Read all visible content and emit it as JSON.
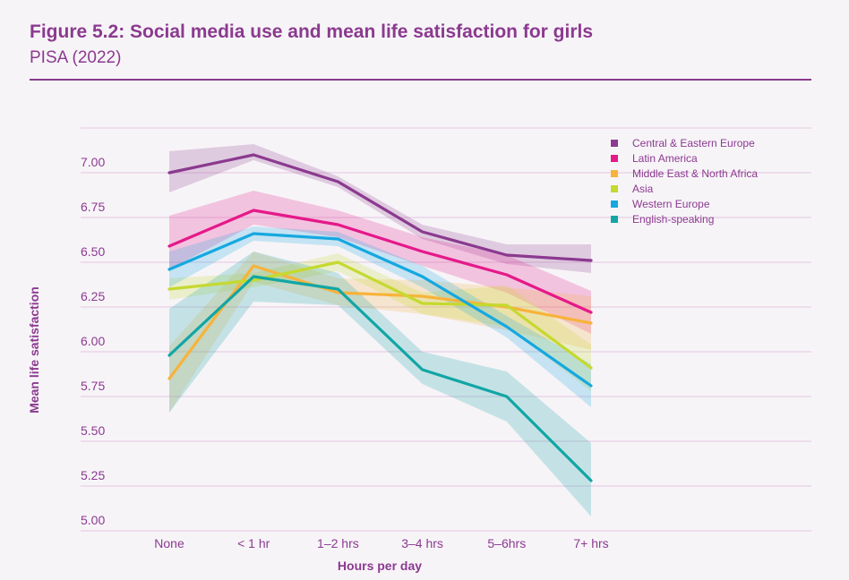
{
  "header": {
    "title": "Figure 5.2: Social media use and mean life satisfaction for girls",
    "subtitle": "PISA (2022)"
  },
  "chart_data": {
    "type": "line",
    "title": "Figure 5.2: Social media use and mean life satisfaction for girls",
    "subtitle": "PISA (2022)",
    "xlabel": "Hours per day",
    "ylabel": "Mean life satisfaction",
    "categories": [
      "None",
      "< 1 hr",
      "1–2 hrs",
      "3–4 hrs",
      "5–6hrs",
      "7+ hrs"
    ],
    "ylim": [
      5.0,
      7.25
    ],
    "yticks": [
      "5.00",
      "5.25",
      "5.50",
      "5.75",
      "6.00",
      "6.25",
      "6.50",
      "6.75",
      "7.00"
    ],
    "ytick_values": [
      5.0,
      5.25,
      5.5,
      5.75,
      6.0,
      6.25,
      6.5,
      6.75,
      7.0
    ],
    "grid": true,
    "legend_position": "top-right",
    "series": [
      {
        "name": "Central & Eastern Europe",
        "color": "#8b3a8f",
        "values": [
          6.94,
          7.04,
          6.89,
          6.61,
          6.48,
          6.45
        ],
        "lower": [
          6.83,
          7.01,
          6.86,
          6.57,
          6.43,
          6.38
        ],
        "upper": [
          7.06,
          7.1,
          6.92,
          6.65,
          6.54,
          6.54
        ]
      },
      {
        "name": "Latin America",
        "color": "#e5198a",
        "values": [
          6.53,
          6.73,
          6.65,
          6.5,
          6.37,
          6.16
        ],
        "lower": [
          6.4,
          6.65,
          6.58,
          6.42,
          6.27,
          6.04
        ],
        "upper": [
          6.7,
          6.84,
          6.73,
          6.58,
          6.48,
          6.28
        ]
      },
      {
        "name": "Middle East & North Africa",
        "color": "#f7b33b",
        "values": [
          5.79,
          6.42,
          6.27,
          6.25,
          6.19,
          6.1
        ],
        "lower": [
          5.6,
          6.33,
          6.2,
          6.15,
          6.06,
          5.95
        ],
        "upper": [
          5.97,
          6.5,
          6.35,
          6.34,
          6.3,
          6.25
        ]
      },
      {
        "name": "Asia",
        "color": "#c5d92f",
        "values": [
          6.29,
          6.34,
          6.44,
          6.21,
          6.2,
          5.85
        ],
        "lower": [
          6.23,
          6.3,
          6.39,
          6.15,
          6.08,
          5.72
        ],
        "upper": [
          6.35,
          6.38,
          6.49,
          6.27,
          6.31,
          5.98
        ]
      },
      {
        "name": "Western Europe",
        "color": "#15a8e0",
        "values": [
          6.4,
          6.6,
          6.57,
          6.36,
          6.08,
          5.75
        ],
        "lower": [
          6.3,
          6.56,
          6.53,
          6.3,
          6.02,
          5.63
        ],
        "upper": [
          6.5,
          6.64,
          6.61,
          6.42,
          6.14,
          5.87
        ]
      },
      {
        "name": "English-speaking",
        "color": "#11a6a5",
        "values": [
          5.92,
          6.36,
          6.29,
          5.84,
          5.69,
          5.22
        ],
        "lower": [
          5.6,
          6.22,
          6.2,
          5.76,
          5.55,
          5.02
        ],
        "upper": [
          6.18,
          6.5,
          6.38,
          5.94,
          5.83,
          5.43
        ]
      }
    ]
  }
}
